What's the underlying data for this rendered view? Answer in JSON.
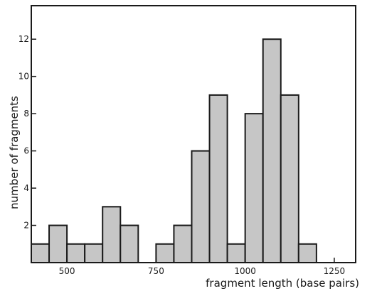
{
  "chart_data": {
    "type": "bar",
    "subtype": "histogram",
    "title": "",
    "xlabel": "fragment length (base pairs)",
    "ylabel": "number of fragments",
    "bin_width": 50,
    "bins": [
      {
        "start": 400,
        "end": 450,
        "count": 1
      },
      {
        "start": 450,
        "end": 500,
        "count": 2
      },
      {
        "start": 500,
        "end": 550,
        "count": 1
      },
      {
        "start": 550,
        "end": 600,
        "count": 1
      },
      {
        "start": 600,
        "end": 650,
        "count": 3
      },
      {
        "start": 650,
        "end": 700,
        "count": 2
      },
      {
        "start": 750,
        "end": 800,
        "count": 1
      },
      {
        "start": 800,
        "end": 850,
        "count": 2
      },
      {
        "start": 850,
        "end": 900,
        "count": 6
      },
      {
        "start": 900,
        "end": 950,
        "count": 9
      },
      {
        "start": 950,
        "end": 1000,
        "count": 1
      },
      {
        "start": 1000,
        "end": 1050,
        "count": 8
      },
      {
        "start": 1050,
        "end": 1100,
        "count": 12
      },
      {
        "start": 1100,
        "end": 1150,
        "count": 9
      },
      {
        "start": 1150,
        "end": 1200,
        "count": 1
      }
    ],
    "xlim": [
      400,
      1310
    ],
    "ylim": [
      0,
      13.8
    ],
    "x_ticks": [
      500,
      750,
      1000,
      1250
    ],
    "x_tick_labels": [
      "500",
      "750",
      "1000",
      "1250"
    ],
    "y_ticks": [
      2,
      4,
      6,
      8,
      10,
      12
    ],
    "y_tick_labels": [
      "2",
      "4",
      "6",
      "8",
      "10",
      "12"
    ],
    "grid": false,
    "legend": "none",
    "colors": {
      "bar_fill": "#c6c6c6",
      "bar_edge": "#1a1a1a"
    }
  }
}
